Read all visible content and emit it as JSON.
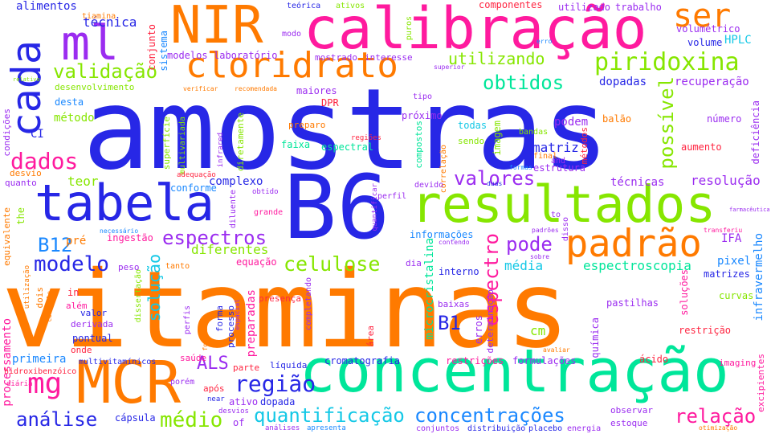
{
  "words": {
    "amostras": "amostras",
    "vitaminas": "vitaminas",
    "b6": "B6",
    "concentracao": "concentração",
    "calibracao": "calibração",
    "resultados": "resultados",
    "mcr": "MCR",
    "tabela": "tabela",
    "nir": "NIR",
    "ml": "ml",
    "cada": "cada",
    "padrao": "padrão",
    "cloridrato": "cloridrato",
    "ser": "ser",
    "piridoxina": "piridoxina",
    "mg": "mg",
    "quantificacao": "quantificação",
    "concentracoes": "concentrações",
    "espectros": "espectros",
    "celulose": "celulose",
    "valores": "valores",
    "validacao": "validação",
    "obtidos": "obtidos",
    "utilizando": "utilizando",
    "dados": "dados",
    "analise": "análise",
    "medio": "médio",
    "regiao": "região",
    "relacao": "relação",
    "modelo": "modelo",
    "possivel": "possível",
    "espectro": "espectro",
    "solucao": "solução",
    "pode": "pode",
    "b1": "B1",
    "b12": "B12",
    "als": "ALS",
    "tecnica": "técnica",
    "alimentos": "alimentos",
    "diferentes": "diferentes",
    "resolucao": "resolução",
    "espectroscopia": "espectroscopia",
    "processamento": "processamento",
    "infravermelho": "infravermelho",
    "matriz": "matriz",
    "primeira": "primeira",
    "complexo": "complexo",
    "ifa": "IFA",
    "recuperacao": "recuperação",
    "dopadas": "dopadas",
    "volume": "volume",
    "hplc": "HPLC",
    "metodo": "método",
    "teor": "teor",
    "cm": "cm",
    "media": "média",
    "pixel": "pixel",
    "matrizes": "matrizes",
    "tecnicas": "técnicas",
    "microcristalina": "microcristalina",
    "cromatografia": "cromatografia",
    "restricoes": "restrições",
    "formulacoes": "formulações",
    "capsula": "cápsula",
    "ci": "CI",
    "podem": "podem",
    "preparadas": "preparadas",
    "pre": "pré",
    "ingestao": "ingestão",
    "equacao": "equação",
    "interno": "interno",
    "informacoes": "informações",
    "pastilhas": "pastilhas",
    "curvas": "curvas",
    "solucoes": "soluções",
    "restricao": "restrição",
    "acido": "ácido",
    "quimica": "química",
    "utilizado": "utilizado",
    "trabalho": "trabalho",
    "componentes": "componentes",
    "volumetrico": "volumétrico",
    "sistema": "sistema",
    "conjunto": "conjunto",
    "modelos": "modelos",
    "laboratorio": "laboratório",
    "mostrado": "mostrado",
    "interesse": "interesse",
    "desenvolvimento": "desenvolvimento",
    "desta": "desta",
    "maiores": "maiores",
    "dpr": "DPR",
    "preparo": "preparo",
    "proximo": "próximo",
    "todas": "todas",
    "imagem": "imagem",
    "balao": "balão",
    "numero": "número",
    "deficiencia": "deficiência",
    "aumento": "aumento",
    "estrutura": "estrutura",
    "final": "final",
    "faixa": "faixa",
    "espectral": "espectral",
    "compostos": "compostos",
    "sendo": "sendo",
    "bandas": "bandas",
    "metodos": "métodos",
    "superficie": "superfície",
    "diretamente": "diretamente",
    "conforme": "conforme",
    "multivariada": "multivariada",
    "condicoes": "condições",
    "desvio": "desvio",
    "quanto": "quanto",
    "the": "the",
    "equivalente": "equivalente",
    "dois": "dois",
    "valor": "valor",
    "derivada": "derivada",
    "pontual": "pontual",
    "onde": "onde",
    "alem": "além",
    "in": "in",
    "peso": "peso",
    "tanto": "tanto",
    "dia": "dia",
    "presenca": "presença",
    "grande": "grande",
    "parte": "parte",
    "liquida": "líquida",
    "saude": "saúde",
    "apos": "após",
    "of": "of",
    "ativo": "ativo",
    "dopada": "dopada",
    "forma": "forma",
    "processo": "processo",
    "area": "área",
    "erros": "erros",
    "determinacao": "determinação",
    "baixas": "baixas",
    "observar": "observar",
    "estoque": "estoque",
    "energia": "energia",
    "placebo": "placebo",
    "distribuicao": "distribuição",
    "conjuntos": "conjuntos",
    "imaging": "imaging",
    "excipientes": "excipientes",
    "multivitaminicos": "multivitamínicos",
    "hidroxibenzoico": "hidroxibenzóico",
    "diaria": "diária",
    "desvios": "desvios",
    "near": "near",
    "porem": "porém",
    "analises": "análises",
    "apresenta": "apresenta",
    "otimizacao": "otimização",
    "avaliar": "avaliar",
    "teorica": "teórica",
    "ativos": "ativos",
    "tiamina": "tiamina",
    "puros": "puros",
    "modo": "modo",
    "erro": "erro",
    "superior": "superior",
    "verificar": "verificar",
    "recomendada": "recomendada",
    "relativo": "relativo",
    "tipo": "tipo",
    "diluente": "diluente",
    "infrared": "infrared",
    "regioes": "regiões",
    "correlacao": "correlação",
    "adequacao": "adequação",
    "obtido": "obtido",
    "quantificar": "quantificar",
    "perfil": "perfil",
    "devido": "devido",
    "duas": "duas",
    "formas": "formas",
    "to": "to",
    "padroes": "padrões",
    "transferiu": "transferiu",
    "farmaceutica": "farmacêutica",
    "necessario": "necessário",
    "disso": "disso",
    "contendo": "contendo",
    "sobre": "sobre",
    "utilizacao": "utilização",
    "controle": "controle",
    "espacial": "espacial",
    "perfis": "perfis",
    "fornecer": "fornecer",
    "completando": "completando",
    "dissertacao": "dissertação",
    "and": "and"
  },
  "colors": {
    "blue": "#2727e6",
    "orange": "#ff7a00",
    "green": "#2ee84f",
    "magenta": "#ff1a9e",
    "purple": "#9b2cf0",
    "cyan": "#14c8e6",
    "lime": "#86e600",
    "spring": "#00e69a",
    "red": "#ff2440",
    "yellow": "#e8d400",
    "azure": "#1a88ff",
    "background": "#ffffff"
  }
}
